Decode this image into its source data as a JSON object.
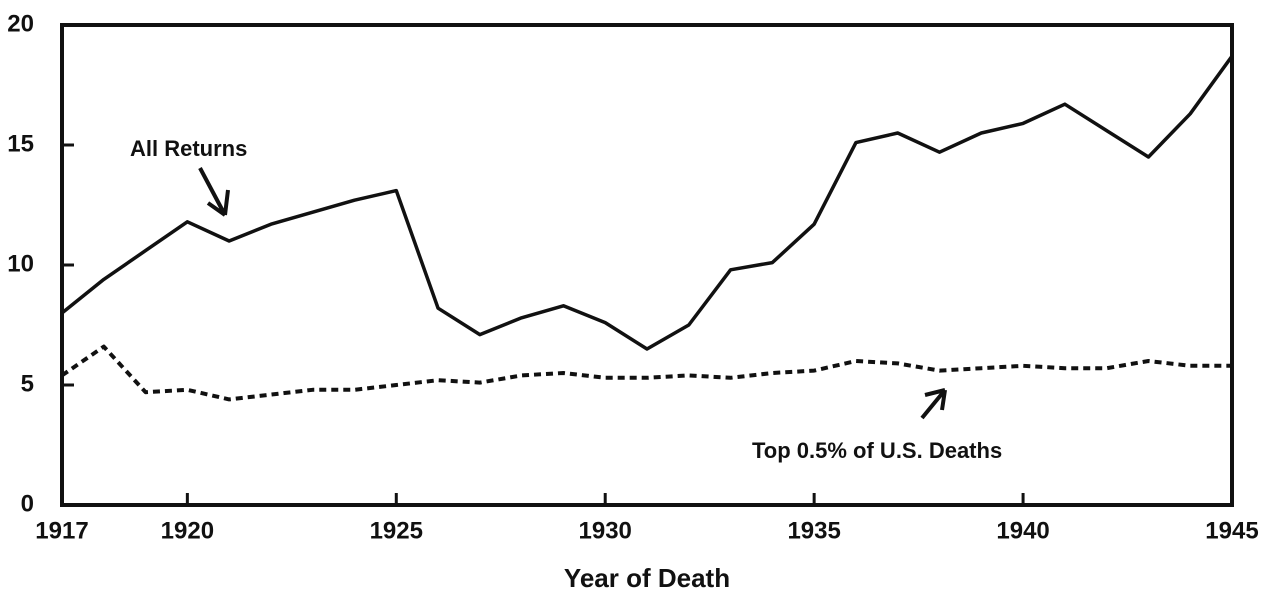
{
  "chart_data": {
    "type": "line",
    "x_label": "Year of Death",
    "x": [
      1917,
      1918,
      1919,
      1920,
      1921,
      1922,
      1923,
      1924,
      1925,
      1926,
      1927,
      1928,
      1929,
      1930,
      1931,
      1932,
      1933,
      1934,
      1935,
      1936,
      1937,
      1938,
      1939,
      1940,
      1941,
      1942,
      1943,
      1944,
      1945
    ],
    "series": [
      {
        "name": "All Returns",
        "color": "#111111",
        "dash": "solid",
        "values": [
          8.0,
          9.4,
          10.6,
          11.8,
          11.0,
          11.7,
          12.2,
          12.7,
          13.1,
          8.2,
          7.1,
          7.8,
          8.3,
          7.6,
          6.5,
          7.5,
          9.8,
          10.1,
          11.7,
          15.1,
          15.5,
          14.7,
          15.5,
          15.9,
          16.7,
          15.6,
          14.5,
          16.3,
          18.7
        ]
      },
      {
        "name": "Top 0.5% of U.S. Deaths",
        "color": "#111111",
        "dash": "dotted",
        "values": [
          5.4,
          6.6,
          4.7,
          4.8,
          4.4,
          4.6,
          4.8,
          4.8,
          5.0,
          5.2,
          5.1,
          5.4,
          5.5,
          5.3,
          5.3,
          5.4,
          5.3,
          5.5,
          5.6,
          6.0,
          5.9,
          5.6,
          5.7,
          5.8,
          5.7,
          5.7,
          6.0,
          5.8,
          5.8
        ]
      }
    ],
    "xlim": [
      1917,
      1945
    ],
    "xticks": [
      1917,
      1920,
      1925,
      1930,
      1935,
      1940,
      1945
    ],
    "ylim": [
      0,
      20
    ],
    "yticks": [
      0,
      5,
      10,
      15,
      20
    ],
    "grid": false
  }
}
